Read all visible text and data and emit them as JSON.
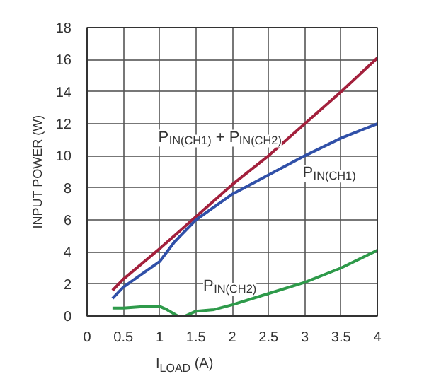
{
  "chart_data": {
    "type": "line",
    "xlabel": "I$_{LOAD}$ (A)",
    "ylabel": "INPUT POWER (W)",
    "xlim": [
      0,
      4
    ],
    "ylim": [
      0,
      18
    ],
    "xticks": [
      0,
      0.5,
      1,
      1.5,
      2,
      2.5,
      3,
      3.5,
      4
    ],
    "yticks": [
      0,
      2,
      4,
      6,
      8,
      10,
      12,
      14,
      16,
      18
    ],
    "grid": true,
    "legend": false,
    "marker": "none",
    "line_style": "solid",
    "series": [
      {
        "name": "P$_{IN(CH1)}$ + P$_{IN(CH2)}$",
        "color": "#a3203c",
        "x": [
          0.35,
          0.5,
          1,
          1.5,
          2,
          2.5,
          3,
          3.5,
          4
        ],
        "values": [
          1.6,
          2.3,
          4.2,
          6.2,
          8.2,
          10,
          12,
          14,
          16.1
        ]
      },
      {
        "name": "P$_{IN(CH1)}$",
        "color": "#3050a8",
        "x": [
          0.35,
          0.5,
          1,
          1.2,
          1.5,
          2,
          2.5,
          3,
          3.5,
          4
        ],
        "values": [
          1.1,
          1.8,
          3.4,
          4.6,
          6,
          7.6,
          8.8,
          10,
          11.1,
          12
        ]
      },
      {
        "name": "P$_{IN(CH2)}$",
        "color": "#2e9a4a",
        "x": [
          0.35,
          0.5,
          0.8,
          1,
          1.1,
          1.25,
          1.35,
          1.5,
          1.75,
          2,
          2.5,
          3,
          3.5,
          4
        ],
        "values": [
          0.5,
          0.5,
          0.6,
          0.6,
          0.4,
          0.0,
          0.0,
          0.3,
          0.4,
          0.7,
          1.4,
          2.1,
          3,
          4.1
        ]
      }
    ]
  }
}
